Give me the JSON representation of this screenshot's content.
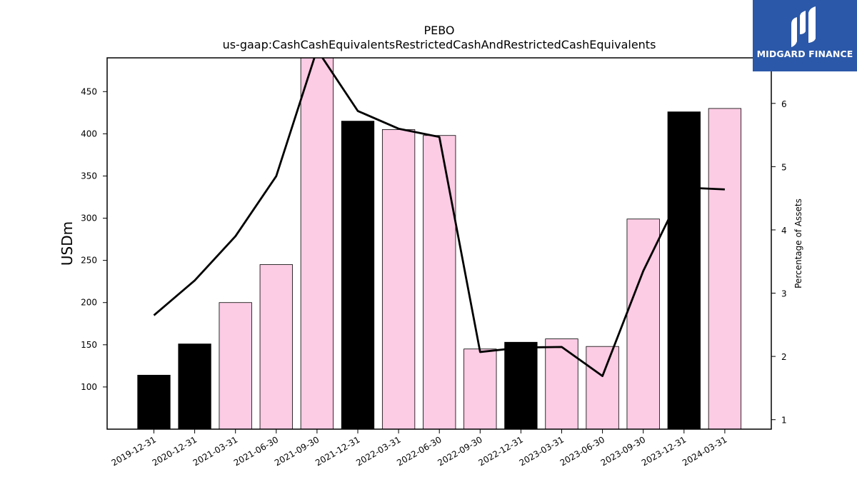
{
  "chart_data": {
    "type": "bar",
    "title": "PEBO",
    "subtitle": "us-gaap:CashCashEquivalentsRestrictedCashAndRestrictedCashEquivalents",
    "ylabel": "USDm",
    "y2label": "Percentage of Assets",
    "ylim": [
      50,
      490
    ],
    "y2lim": [
      0.85,
      6.72
    ],
    "yticks": [
      100,
      150,
      200,
      250,
      300,
      350,
      400,
      450
    ],
    "y2ticks": [
      1,
      2,
      3,
      4,
      5,
      6
    ],
    "categories": [
      "2019-12-31",
      "2020-12-31",
      "2021-03-31",
      "2021-06-30",
      "2021-09-30",
      "2021-12-31",
      "2022-03-31",
      "2022-06-30",
      "2022-09-30",
      "2022-12-31",
      "2023-03-31",
      "2023-06-30",
      "2023-09-30",
      "2023-12-31",
      "2024-03-31"
    ],
    "series": [
      {
        "kind": "bar",
        "values": [
          114,
          151,
          200,
          245,
          495,
          415,
          405,
          398,
          145,
          153,
          157,
          148,
          299,
          426,
          430
        ],
        "colors": [
          "#000000",
          "#000000",
          "#fccbe4",
          "#fccbe4",
          "#fccbe4",
          "#000000",
          "#fccbe4",
          "#fccbe4",
          "#fccbe4",
          "#000000",
          "#fccbe4",
          "#fccbe4",
          "#fccbe4",
          "#000000",
          "#fccbe4"
        ]
      },
      {
        "kind": "line",
        "axis": "right",
        "color": "#000000",
        "values": [
          2.65,
          3.2,
          3.9,
          4.85,
          6.85,
          5.88,
          5.6,
          5.47,
          2.07,
          2.14,
          2.15,
          1.69,
          3.35,
          4.67,
          4.64
        ]
      }
    ],
    "grid": false
  },
  "logo": {
    "text": "MIDGARD FINANCE"
  }
}
